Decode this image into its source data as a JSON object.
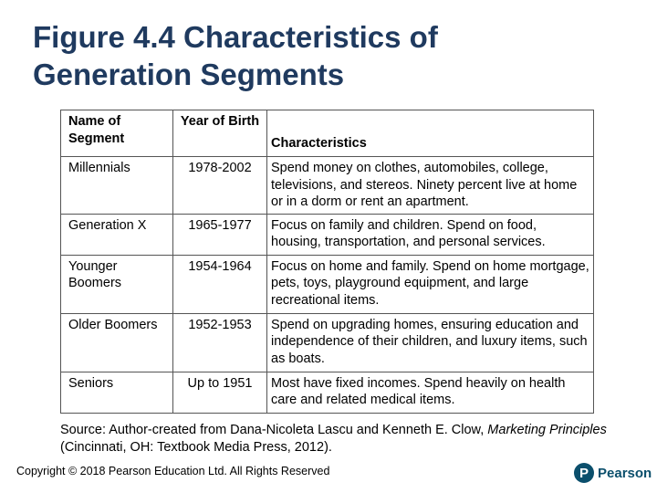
{
  "title": {
    "line1": "Figure 4.4 Characteristics of",
    "line2": "Generation Segments"
  },
  "table": {
    "headers": {
      "name": "Name of Segment",
      "year": "Year of Birth",
      "characteristics": "Characteristics"
    },
    "rows": [
      {
        "name": "Millennials",
        "year": "1978-2002",
        "characteristics": "Spend money on clothes, automobiles, college, televisions, and stereos. Ninety percent live at home or in a dorm or rent an apartment."
      },
      {
        "name": "Generation X",
        "year": "1965-1977",
        "characteristics": "Focus on family and children. Spend on food, housing, transportation, and personal services."
      },
      {
        "name": "Younger Boomers",
        "year": "1954-1964",
        "characteristics": "Focus on home and family. Spend on home mortgage, pets, toys, playground equipment, and large recreational items."
      },
      {
        "name": "Older Boomers",
        "year": "1952-1953",
        "characteristics": "Spend on upgrading homes, ensuring education and independence of their children, and luxury items, such as boats."
      },
      {
        "name": "Seniors",
        "year": "Up to 1951",
        "characteristics": "Most have fixed incomes. Spend heavily on health care and related medical items."
      }
    ]
  },
  "source": {
    "prefix": "Source: Author-created from Dana-Nicoleta Lascu and Kenneth E. Clow, ",
    "book": "Marketing Principles",
    "suffix": " (Cincinnati, OH: Textbook Media Press, 2012)."
  },
  "copyright": "Copyright © 2018 Pearson Education Ltd. All Rights Reserved",
  "logo": {
    "mark": "P",
    "text": "Pearson",
    "color": "#0b4f6c"
  },
  "colors": {
    "title": "#1f3a5f"
  }
}
